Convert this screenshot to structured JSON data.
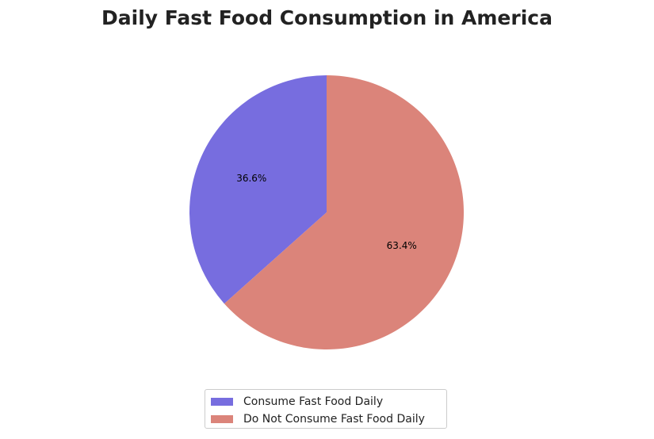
{
  "chart_data": {
    "type": "pie",
    "title": "Daily Fast Food Consumption in America",
    "slices": [
      {
        "label": "Consume Fast Food Daily",
        "value": 36.6,
        "display": "36.6%",
        "color": "#776ddf"
      },
      {
        "label": "Do Not Consume Fast Food Daily",
        "value": 63.4,
        "display": "63.4%",
        "color": "#db847a"
      }
    ],
    "start_angle_deg": 90,
    "direction": "counterclockwise",
    "legend_position": "bottom-center"
  }
}
